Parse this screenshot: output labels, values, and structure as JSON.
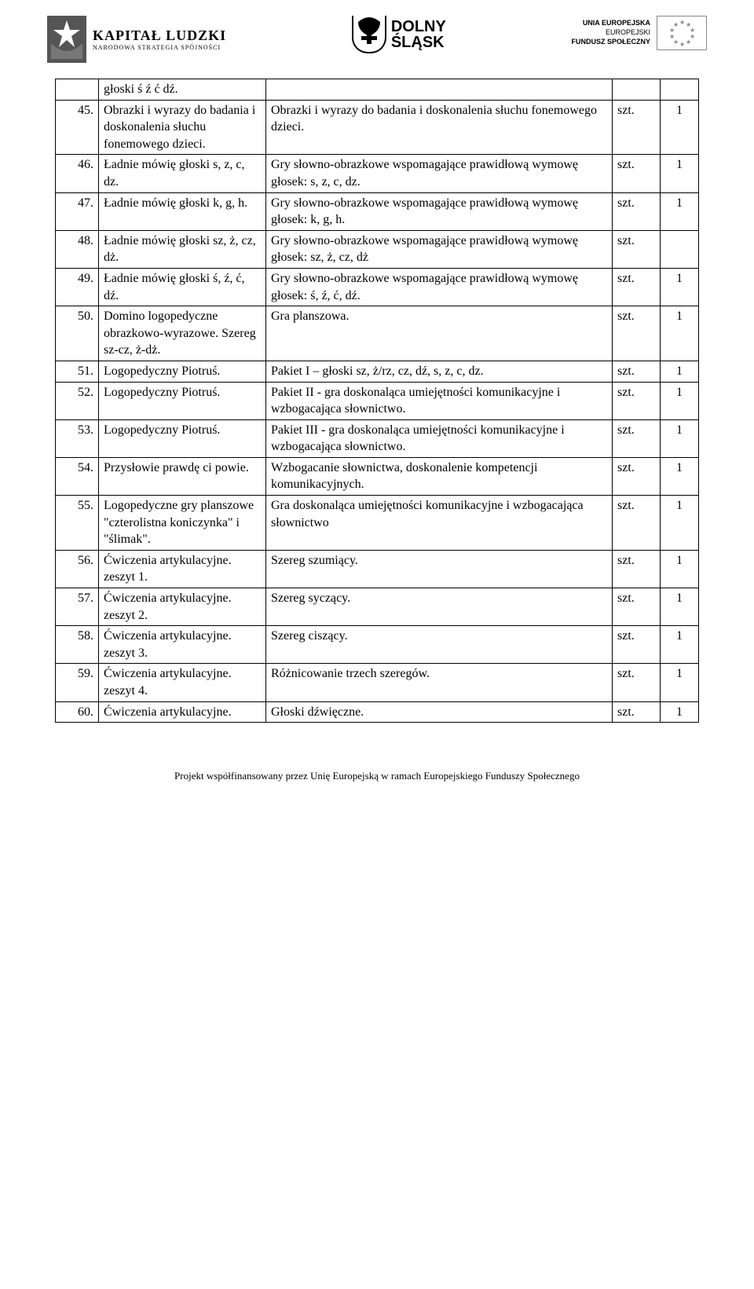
{
  "header": {
    "kapital_l1": "KAPITAŁ LUDZKI",
    "kapital_l2": "NARODOWA STRATEGIA SPÓJNOŚCI",
    "slask_l1": "DOLNY",
    "slask_l2": "ŚLĄSK",
    "eu_l1": "UNIA EUROPEJSKA",
    "eu_l2": "EUROPEJSKI",
    "eu_l3": "FUNDUSZ SPOŁECZNY"
  },
  "first_row": {
    "name": "głoski ś ź ć dź."
  },
  "rows": [
    {
      "num": "45.",
      "name": "Obrazki i wyrazy do badania i doskonalenia słuchu fonemowego dzieci.",
      "desc": "Obrazki i wyrazy do badania i doskonalenia słuchu fonemowego dzieci.",
      "unit": "szt.",
      "qty": "1"
    },
    {
      "num": "46.",
      "name": "Ładnie mówię głoski s, z, c, dz.",
      "desc": "Gry słowno-obrazkowe wspomagające prawidłową wymowę głosek: s, z, c, dz.",
      "unit": "szt.",
      "qty": "1"
    },
    {
      "num": "47.",
      "name": "Ładnie mówię głoski k, g, h.",
      "desc": "Gry słowno-obrazkowe wspomagające prawidłową wymowę głosek: k, g, h.",
      "unit": "szt.",
      "qty": "1"
    },
    {
      "num": "48.",
      "name": "Ładnie mówię głoski sz, ż, cz, dż.",
      "desc": "Gry słowno-obrazkowe wspomagające prawidłową wymowę głosek: sz, ż, cz, dż",
      "unit": "szt.",
      "qty": ""
    },
    {
      "num": "49.",
      "name": "Ładnie mówię głoski ś, ź, ć, dź.",
      "desc": "Gry słowno-obrazkowe wspomagające prawidłową wymowę głosek: ś, ź, ć, dź.",
      "unit": "szt.",
      "qty": "1"
    },
    {
      "num": "50.",
      "name": "Domino logopedyczne obrazkowo-wyrazowe. Szereg sz-cz, ż-dż.",
      "desc": "Gra planszowa.",
      "unit": "szt.",
      "qty": "1"
    },
    {
      "num": "51.",
      "name": "Logopedyczny Piotruś.",
      "desc": "Pakiet I – głoski sz, ż/rz, cz, dź, s, z, c, dz.",
      "unit": "szt.",
      "qty": "1"
    },
    {
      "num": "52.",
      "name": "Logopedyczny Piotruś.",
      "desc": "Pakiet II - gra doskonaląca umiejętności komunikacyjne i wzbogacająca słownictwo.",
      "unit": "szt.",
      "qty": "1"
    },
    {
      "num": "53.",
      "name": "Logopedyczny Piotruś.",
      "desc": "Pakiet III - gra doskonaląca umiejętności komunikacyjne i wzbogacająca słownictwo.",
      "unit": "szt.",
      "qty": "1"
    },
    {
      "num": "54.",
      "name": "Przysłowie prawdę ci powie.",
      "desc": "Wzbogacanie słownictwa, doskonalenie kompetencji komunikacyjnych.",
      "unit": "szt.",
      "qty": "1"
    },
    {
      "num": "55.",
      "name": "Logopedyczne gry planszowe \"czterolistna koniczynka\" i \"ślimak\".",
      "desc": "Gra doskonaląca umiejętności komunikacyjne i wzbogacająca słownictwo",
      "unit": "szt.",
      "qty": "1"
    },
    {
      "num": "56.",
      "name": "Ćwiczenia artykulacyjne. zeszyt 1.",
      "desc": "Szereg szumiący.",
      "unit": "szt.",
      "qty": "1"
    },
    {
      "num": "57.",
      "name": "Ćwiczenia artykulacyjne. zeszyt 2.",
      "desc": "Szereg syczący.",
      "unit": "szt.",
      "qty": "1"
    },
    {
      "num": "58.",
      "name": "Ćwiczenia artykulacyjne. zeszyt 3.",
      "desc": "Szereg ciszący.",
      "unit": "szt.",
      "qty": "1"
    },
    {
      "num": "59.",
      "name": "Ćwiczenia artykulacyjne. zeszyt 4.",
      "desc": "Różnicowanie trzech szeregów.",
      "unit": "szt.",
      "qty": "1"
    },
    {
      "num": "60.",
      "name": "Ćwiczenia artykulacyjne.",
      "desc": "Głoski dźwięczne.",
      "unit": "szt.",
      "qty": "1"
    }
  ],
  "footer": "Projekt współfinansowany przez Unię Europejską w ramach Europejskiego Funduszy Społecznego",
  "colors": {
    "text": "#000000",
    "bg": "#ffffff",
    "border": "#000000",
    "grey": "#888888"
  }
}
